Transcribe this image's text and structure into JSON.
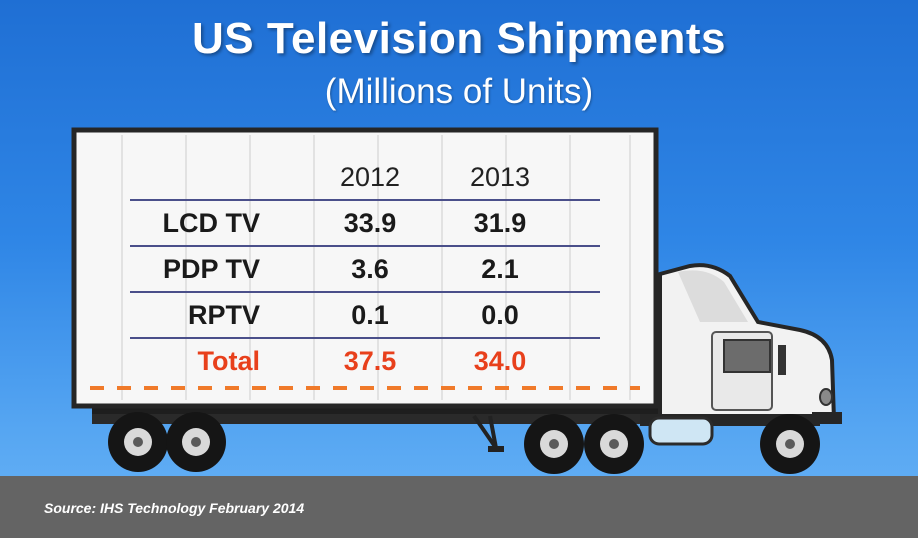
{
  "title": "US Television Shipments",
  "subtitle": "(Millions of Units)",
  "chart_data": {
    "type": "table",
    "columns": [
      "2012",
      "2013"
    ],
    "rows": [
      {
        "label": "LCD TV",
        "values": [
          "33.9",
          "31.9"
        ]
      },
      {
        "label": "PDP TV",
        "values": [
          "3.6",
          "2.1"
        ]
      },
      {
        "label": "RPTV",
        "values": [
          "0.1",
          "0.0"
        ]
      }
    ],
    "total": {
      "label": "Total",
      "values": [
        "37.5",
        "34.0"
      ]
    }
  },
  "source": "Source: IHS Technology February 2014",
  "colors": {
    "sky_top": "#1f6fd4",
    "sky_bottom": "#6ab4f6",
    "road": "#646464",
    "total_text": "#e8401c",
    "table_lines": "#4a4f8a",
    "dash_orange": "#f07a2a"
  }
}
